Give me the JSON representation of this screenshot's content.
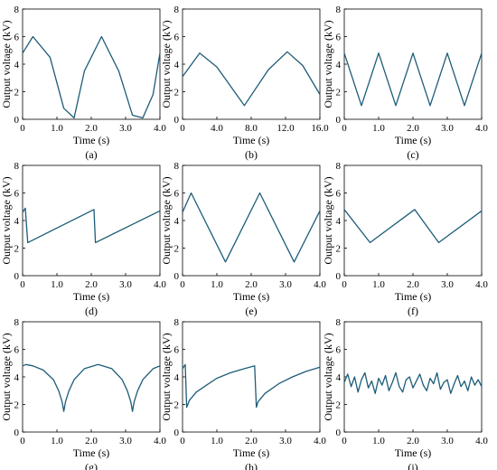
{
  "chart_data": [
    {
      "type": "line",
      "caption": "(a)",
      "xlabel": "Time (s)",
      "ylabel": "Output voltage (kV)",
      "xlim": [
        0,
        4
      ],
      "ylim": [
        0,
        8
      ],
      "xticks": [
        "0",
        "1.0",
        "2.0",
        "3.0",
        "4.0"
      ],
      "yticks": [
        "0",
        "2",
        "4",
        "6",
        "8"
      ],
      "series": [
        {
          "x": [
            0,
            0.3,
            0.8,
            1.2,
            1.5,
            1.8,
            2.3,
            2.8,
            3.2,
            3.5,
            3.8,
            4.0
          ],
          "y": [
            4.8,
            6.0,
            4.5,
            0.8,
            0.1,
            3.5,
            6.0,
            3.5,
            0.3,
            0.1,
            1.8,
            4.8
          ]
        }
      ]
    },
    {
      "type": "line",
      "caption": "(b)",
      "xlabel": "Time (s)",
      "ylabel": "Output voltage (kV)",
      "xlim": [
        0,
        16
      ],
      "ylim": [
        0,
        8
      ],
      "xticks": [
        "0",
        "4.0",
        "8.0",
        "12.0",
        "16.0"
      ],
      "yticks": [
        "0",
        "2",
        "4",
        "6",
        "8"
      ],
      "series": [
        {
          "x": [
            0,
            2,
            4,
            7.2,
            10,
            12.2,
            14,
            16
          ],
          "y": [
            3.1,
            4.8,
            3.8,
            1.0,
            3.6,
            4.9,
            3.9,
            1.8
          ]
        }
      ]
    },
    {
      "type": "line",
      "caption": "(c)",
      "xlabel": "Time (s)",
      "ylabel": "Output voltage (kV)",
      "xlim": [
        0,
        4
      ],
      "ylim": [
        0,
        8
      ],
      "xticks": [
        "0",
        "1.0",
        "2.0",
        "3.0",
        "4.0"
      ],
      "yticks": [
        "0",
        "2",
        "4",
        "6",
        "8"
      ],
      "series": [
        {
          "x": [
            0,
            0.5,
            1.0,
            1.5,
            2.0,
            2.5,
            3.0,
            3.5,
            4.0
          ],
          "y": [
            4.8,
            1.0,
            4.8,
            1.0,
            4.8,
            1.0,
            4.8,
            1.0,
            4.8
          ]
        }
      ]
    },
    {
      "type": "line",
      "caption": "(d)",
      "xlabel": "Time (s)",
      "ylabel": "Output voltage (kV)",
      "xlim": [
        0,
        4
      ],
      "ylim": [
        0,
        8
      ],
      "xticks": [
        "0",
        "1.0",
        "2.0",
        "3.0",
        "4.0"
      ],
      "yticks": [
        "0",
        "2",
        "4",
        "6",
        "8"
      ],
      "series": [
        {
          "x": [
            0,
            0.08,
            0.15,
            2.08,
            2.12,
            4.0
          ],
          "y": [
            4.6,
            4.9,
            2.4,
            4.8,
            2.4,
            4.7
          ]
        }
      ]
    },
    {
      "type": "line",
      "caption": "(e)",
      "xlabel": "Time (s)",
      "ylabel": "Output voltage (kV)",
      "xlim": [
        0,
        4
      ],
      "ylim": [
        0,
        8
      ],
      "xticks": [
        "0",
        "1.0",
        "2.0",
        "3.0",
        "4.0"
      ],
      "yticks": [
        "0",
        "2",
        "4",
        "6",
        "8"
      ],
      "series": [
        {
          "x": [
            0,
            0.25,
            1.25,
            2.25,
            3.25,
            4.0
          ],
          "y": [
            4.6,
            6.0,
            1.0,
            6.0,
            1.0,
            4.7
          ]
        }
      ]
    },
    {
      "type": "line",
      "caption": "(f)",
      "xlabel": "Time (s)",
      "ylabel": "Output voltage (kV)",
      "xlim": [
        0,
        4
      ],
      "ylim": [
        0,
        8
      ],
      "xticks": [
        "0",
        "1.0",
        "2.0",
        "3.0",
        "4.0"
      ],
      "yticks": [
        "0",
        "2",
        "4",
        "6",
        "8"
      ],
      "series": [
        {
          "x": [
            0,
            0.75,
            2.05,
            2.75,
            4.0
          ],
          "y": [
            4.8,
            2.4,
            4.8,
            2.4,
            4.7
          ]
        }
      ]
    },
    {
      "type": "line",
      "caption": "(g)",
      "xlabel": "Time (s)",
      "ylabel": "Output voltage (kV)",
      "xlim": [
        0,
        4
      ],
      "ylim": [
        0,
        8
      ],
      "xticks": [
        "0",
        "1.0",
        "2.0",
        "3.0",
        "4.0"
      ],
      "yticks": [
        "0",
        "2",
        "4",
        "6",
        "8"
      ],
      "series": [
        {
          "x": [
            0,
            0.1,
            0.3,
            0.6,
            0.9,
            1.05,
            1.15,
            1.2,
            1.25,
            1.35,
            1.5,
            1.8,
            2.2,
            2.6,
            2.9,
            3.05,
            3.15,
            3.2,
            3.25,
            3.35,
            3.5,
            3.8,
            4.0
          ],
          "y": [
            4.8,
            4.9,
            4.8,
            4.5,
            3.8,
            3.0,
            2.2,
            1.5,
            2.2,
            3.0,
            3.8,
            4.6,
            4.9,
            4.6,
            3.8,
            3.0,
            2.2,
            1.5,
            2.2,
            3.0,
            3.8,
            4.6,
            4.8
          ]
        }
      ]
    },
    {
      "type": "line",
      "caption": "(h)",
      "xlabel": "Time (s)",
      "ylabel": "Output voltage (kV)",
      "xlim": [
        0,
        4
      ],
      "ylim": [
        0,
        8
      ],
      "xticks": [
        "0",
        "1.0",
        "2.0",
        "3.0",
        "4.0"
      ],
      "yticks": [
        "0",
        "2",
        "4",
        "6",
        "8"
      ],
      "series": [
        {
          "x": [
            0,
            0.08,
            0.12,
            0.2,
            0.4,
            0.7,
            1.0,
            1.4,
            1.8,
            2.1,
            2.15,
            2.2,
            2.4,
            2.8,
            3.2,
            3.6,
            4.0
          ],
          "y": [
            4.6,
            4.9,
            1.8,
            2.3,
            2.9,
            3.4,
            3.9,
            4.3,
            4.6,
            4.8,
            1.8,
            2.2,
            2.8,
            3.5,
            4.0,
            4.4,
            4.7
          ]
        }
      ]
    },
    {
      "type": "line",
      "caption": "(i)",
      "xlabel": "Time (s)",
      "ylabel": "Output voltage (kV)",
      "xlim": [
        0,
        4
      ],
      "ylim": [
        0,
        8
      ],
      "xticks": [
        "0",
        "1.0",
        "2.0",
        "3.0",
        "4.0"
      ],
      "yticks": [
        "0",
        "2",
        "4",
        "6",
        "8"
      ],
      "series": [
        {
          "x": [
            0,
            0.1,
            0.2,
            0.3,
            0.4,
            0.5,
            0.6,
            0.7,
            0.8,
            0.9,
            1.0,
            1.1,
            1.2,
            1.3,
            1.4,
            1.5,
            1.6,
            1.7,
            1.8,
            1.9,
            2.0,
            2.1,
            2.2,
            2.3,
            2.4,
            2.5,
            2.6,
            2.7,
            2.8,
            2.9,
            3.0,
            3.1,
            3.2,
            3.3,
            3.4,
            3.5,
            3.6,
            3.7,
            3.8,
            3.9,
            4.0
          ],
          "y": [
            3.6,
            4.2,
            3.3,
            4.0,
            2.9,
            3.8,
            4.3,
            3.2,
            3.7,
            2.8,
            3.9,
            3.4,
            4.1,
            3.0,
            3.6,
            4.3,
            3.3,
            2.9,
            3.8,
            4.0,
            3.2,
            3.7,
            4.2,
            3.4,
            3.0,
            3.9,
            3.5,
            4.3,
            3.1,
            3.6,
            3.8,
            2.8,
            3.5,
            4.1,
            3.3,
            3.7,
            3.0,
            4.0,
            3.4,
            3.8,
            3.3
          ]
        }
      ]
    }
  ]
}
